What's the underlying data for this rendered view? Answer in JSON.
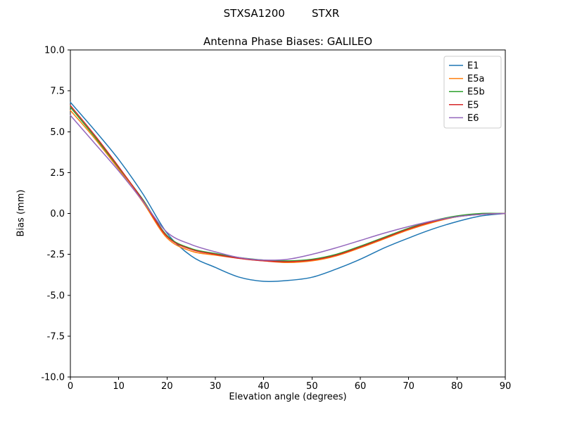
{
  "chart_data": {
    "type": "line",
    "suptitle": "STXSA1200        STXR",
    "title": "Antenna Phase Biases: GALILEO",
    "xlabel": "Elevation angle (degrees)",
    "ylabel": "Bias (mm)",
    "xlim": [
      0,
      90
    ],
    "ylim": [
      -10,
      10
    ],
    "xticks": [
      0,
      10,
      20,
      30,
      40,
      50,
      60,
      70,
      80,
      90
    ],
    "yticks": [
      10.0,
      7.5,
      5.0,
      2.5,
      0.0,
      -2.5,
      -5.0,
      -7.5,
      -10.0
    ],
    "ytick_labels": [
      "10.0",
      "7.5",
      "5.0",
      "2.5",
      "0.0",
      "-2.5",
      "-5.0",
      "-7.5",
      "-10.0"
    ],
    "grid": false,
    "legend_position": "upper right",
    "x": [
      0,
      5,
      10,
      15,
      20,
      25,
      30,
      35,
      40,
      45,
      50,
      55,
      60,
      65,
      70,
      75,
      80,
      85,
      90
    ],
    "series": [
      {
        "name": "E1",
        "color": "#1f77b4",
        "values": [
          6.8,
          5.1,
          3.3,
          1.2,
          -1.2,
          -2.6,
          -3.3,
          -3.9,
          -4.15,
          -4.1,
          -3.9,
          -3.4,
          -2.8,
          -2.1,
          -1.5,
          -0.95,
          -0.5,
          -0.15,
          0.0
        ]
      },
      {
        "name": "E5a",
        "color": "#ff7f0e",
        "values": [
          6.3,
          4.6,
          2.7,
          0.7,
          -1.5,
          -2.3,
          -2.55,
          -2.75,
          -2.9,
          -3.0,
          -2.9,
          -2.6,
          -2.1,
          -1.55,
          -1.0,
          -0.55,
          -0.2,
          -0.05,
          0.0
        ]
      },
      {
        "name": "E5b",
        "color": "#2ca02c",
        "values": [
          6.5,
          4.7,
          2.8,
          0.85,
          -1.35,
          -2.15,
          -2.45,
          -2.7,
          -2.85,
          -2.9,
          -2.8,
          -2.5,
          -2.0,
          -1.45,
          -0.9,
          -0.45,
          -0.15,
          0.0,
          0.0
        ]
      },
      {
        "name": "E5",
        "color": "#d62728",
        "values": [
          6.6,
          4.8,
          2.85,
          0.8,
          -1.4,
          -2.2,
          -2.5,
          -2.75,
          -2.9,
          -2.95,
          -2.85,
          -2.55,
          -2.05,
          -1.5,
          -0.95,
          -0.5,
          -0.2,
          -0.05,
          0.0
        ]
      },
      {
        "name": "E6",
        "color": "#9467bd",
        "values": [
          6.0,
          4.3,
          2.6,
          0.75,
          -1.15,
          -1.9,
          -2.35,
          -2.7,
          -2.85,
          -2.8,
          -2.5,
          -2.1,
          -1.65,
          -1.2,
          -0.8,
          -0.45,
          -0.2,
          -0.05,
          0.0
        ]
      }
    ],
    "axes": {
      "frame_color": "#000000",
      "tick_color": "#000000",
      "legend_border_color": "#cccccc",
      "line_width": 1.5
    }
  }
}
